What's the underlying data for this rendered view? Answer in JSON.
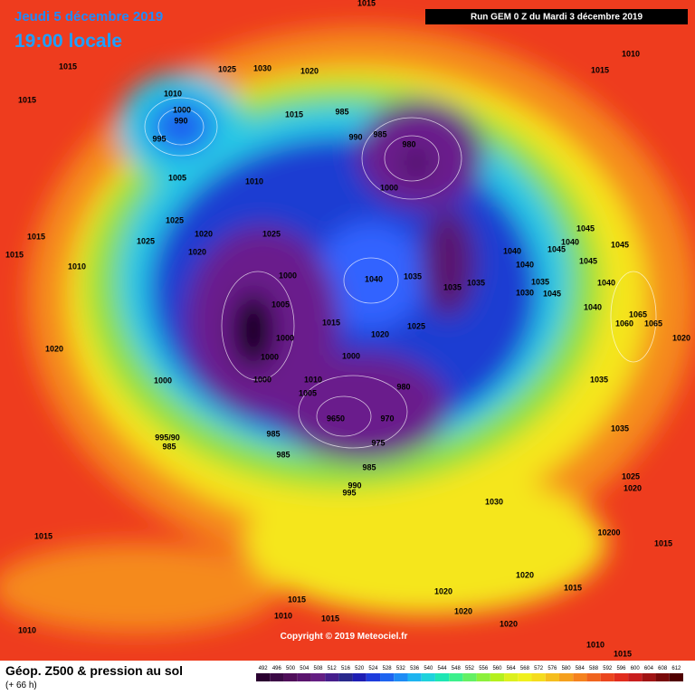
{
  "header": {
    "date": "Jeudi 5 décembre 2019",
    "time": "19:00 locale",
    "run": "Run GEM 0 Z du Mardi 3 décembre 2019"
  },
  "copyright": "Copyright © 2019 Meteociel.fr",
  "footer": {
    "title": "Géop. Z500 & pression au sol",
    "lead": "(+ 66 h)"
  },
  "legend": {
    "values": [
      492,
      496,
      500,
      504,
      508,
      512,
      516,
      520,
      524,
      528,
      532,
      536,
      540,
      544,
      548,
      552,
      556,
      560,
      564,
      568,
      572,
      576,
      580,
      584,
      588,
      592,
      596,
      600,
      604,
      608,
      612
    ],
    "colors": [
      "#2a0030",
      "#3c0a46",
      "#500f5a",
      "#5a146e",
      "#641e82",
      "#461e8c",
      "#28288c",
      "#1e1eb4",
      "#1e3cdc",
      "#1e64f0",
      "#1e8cf5",
      "#1eb4f0",
      "#1ed2dc",
      "#1ee6b4",
      "#3cf08c",
      "#64f064",
      "#8cf03c",
      "#b4f01e",
      "#dcf01e",
      "#f0f01e",
      "#f5dc1e",
      "#f5be1e",
      "#f5a01e",
      "#f5821e",
      "#f0641e",
      "#eb461e",
      "#e12d1e",
      "#c81e1e",
      "#a01414",
      "#780a0a",
      "#500000"
    ]
  },
  "isobar_labels": [
    "1015",
    "1015",
    "1025",
    "1030",
    "1020",
    "1015",
    "1010",
    "1015",
    "1010",
    "1000",
    "990",
    "995",
    "985",
    "990",
    "985",
    "980",
    "1015",
    "1005",
    "1010",
    "1000",
    "1025",
    "1020",
    "1025",
    "1025",
    "1020",
    "1015",
    "1015",
    "1010",
    "1000",
    "1040",
    "1035",
    "1035",
    "1035",
    "1040",
    "1040",
    "1045",
    "1040",
    "1045",
    "1045",
    "1045",
    "1035",
    "1030",
    "1045",
    "1040",
    "1040",
    "1005",
    "1015",
    "1020",
    "1025",
    "1065",
    "1060",
    "1065",
    "1020",
    "1020",
    "1000",
    "1000",
    "1000",
    "1010",
    "1005",
    "1000",
    "1000",
    "980",
    "970",
    "9650",
    "975",
    "1035",
    "1035",
    "995/90",
    "985",
    "985",
    "985",
    "985",
    "990",
    "995",
    "1030",
    "1025",
    "1020",
    "10200",
    "1015",
    "1015",
    "1020",
    "1015",
    "1020",
    "1015",
    "1020",
    "1010",
    "1015",
    "1020",
    "1010",
    "1010",
    "1015"
  ]
}
